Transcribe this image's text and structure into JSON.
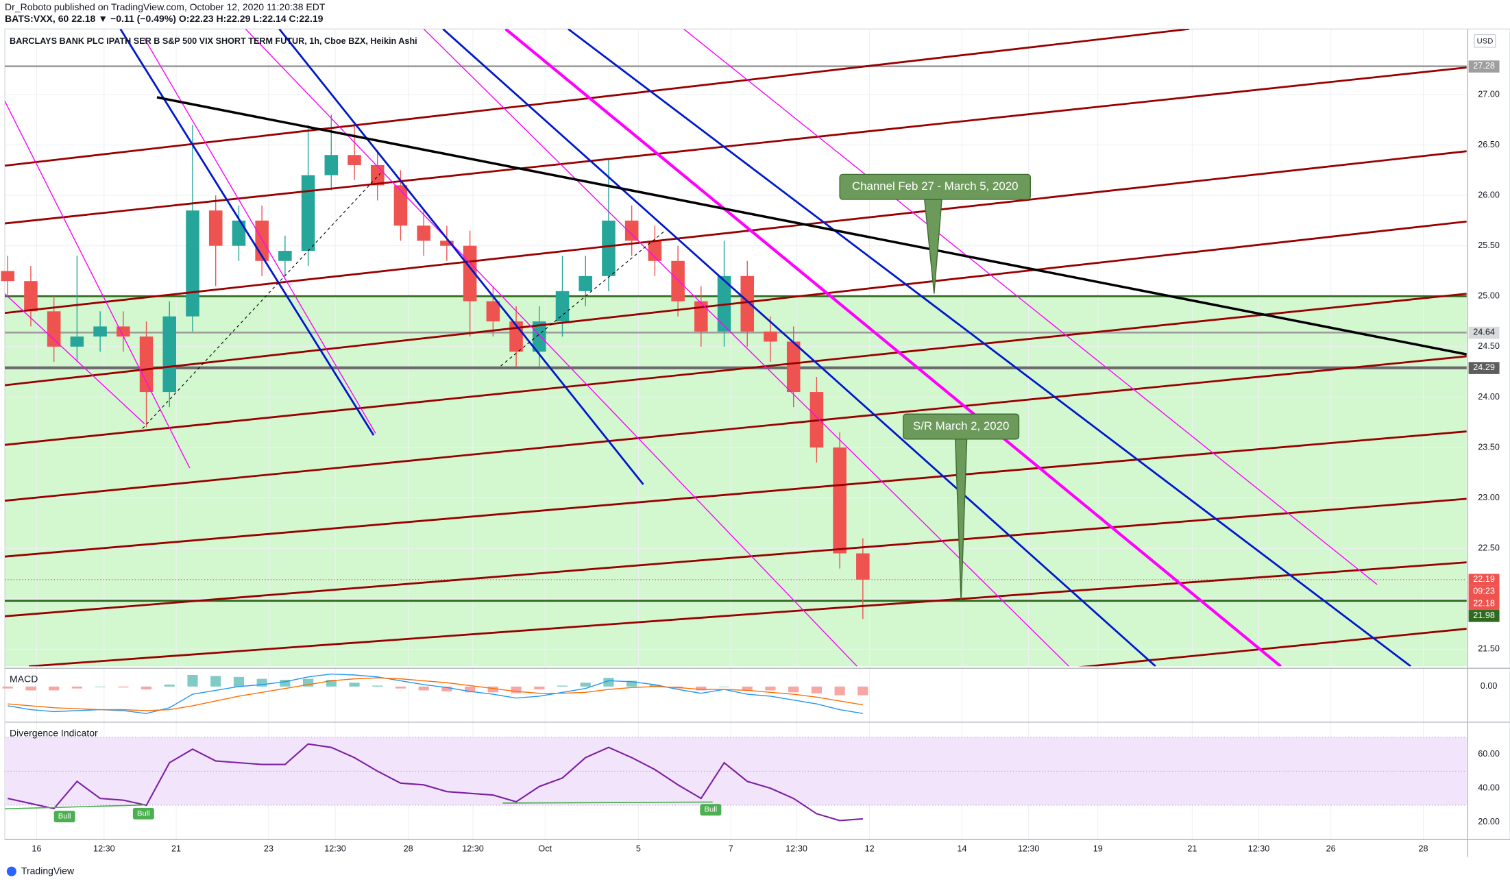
{
  "header": {
    "author_line": "Dr_Roboto published on TradingView.com, October 12, 2020 11:20:38 EDT",
    "symbol_line": "BATS:VXX, 60  22.18 ▼ −0.11 (−0.49%) O:22.23 H:22.29 L:22.14 C:22.19"
  },
  "footer": "TradingView",
  "chart_data": [
    {
      "type": "candlestick",
      "title": "BARCLAYS BANK PLC IPATH SER B S&P 500 VIX SHORT TERM FUTUR, 1h, Cboe BZX, Heikin Ashi",
      "currency": "USD",
      "open": [
        25.25,
        25.15,
        24.85,
        24.5,
        24.6,
        24.7,
        24.6,
        24.05,
        24.8,
        25.85,
        25.5,
        25.75,
        25.35,
        25.45,
        26.2,
        26.4,
        26.3,
        26.1,
        25.7,
        25.55,
        25.5,
        24.95,
        24.75,
        24.45,
        24.75,
        25.05,
        25.2,
        25.75,
        25.55,
        25.35,
        24.95,
        24.65,
        25.2,
        24.65,
        24.55,
        24.05,
        23.5,
        22.45
      ],
      "high": [
        25.4,
        25.3,
        25.0,
        25.4,
        24.85,
        24.85,
        24.75,
        24.95,
        26.7,
        26.0,
        25.9,
        25.9,
        25.6,
        26.7,
        26.8,
        26.7,
        26.45,
        26.25,
        25.85,
        25.7,
        25.65,
        25.1,
        24.9,
        24.9,
        25.4,
        25.4,
        26.35,
        25.9,
        25.7,
        25.5,
        25.1,
        25.55,
        25.35,
        24.8,
        24.7,
        24.2,
        23.65,
        22.6
      ],
      "low": [
        25.0,
        24.7,
        24.35,
        24.35,
        24.45,
        24.45,
        23.7,
        23.9,
        24.65,
        25.1,
        25.35,
        25.2,
        25.2,
        25.3,
        26.05,
        26.15,
        25.95,
        25.55,
        25.4,
        25.35,
        24.6,
        24.6,
        24.3,
        24.3,
        24.6,
        24.9,
        25.05,
        25.4,
        25.2,
        24.8,
        24.5,
        24.5,
        24.5,
        24.35,
        23.9,
        23.35,
        22.3,
        21.8
      ],
      "close": [
        25.15,
        24.85,
        24.5,
        24.6,
        24.7,
        24.6,
        24.05,
        24.8,
        25.85,
        25.5,
        25.75,
        25.35,
        25.45,
        26.2,
        26.4,
        26.3,
        26.1,
        25.7,
        25.55,
        25.5,
        24.95,
        24.75,
        24.45,
        24.75,
        25.05,
        25.2,
        25.75,
        25.55,
        25.35,
        24.95,
        24.65,
        25.2,
        24.65,
        24.55,
        24.05,
        23.5,
        22.45,
        22.19
      ],
      "up_color": "#26a69a",
      "down_color": "#ef5350",
      "ylim": [
        21.33,
        27.65
      ],
      "yticks": [
        {
          "value": 21.5,
          "label": "21.50"
        },
        {
          "value": 22,
          "label": "22.00"
        },
        {
          "value": 22.5,
          "label": "22.50"
        },
        {
          "value": 23,
          "label": "23.00"
        },
        {
          "value": 23.5,
          "label": "23.50"
        },
        {
          "value": 24,
          "label": "24.00"
        },
        {
          "value": 24.5,
          "label": "24.50"
        },
        {
          "value": 25,
          "label": "25.00"
        },
        {
          "value": 25.5,
          "label": "25.50"
        },
        {
          "value": 26,
          "label": "26.00"
        },
        {
          "value": 26.5,
          "label": "26.50"
        },
        {
          "value": 27,
          "label": "27.00"
        }
      ],
      "xlim": [
        -0.125,
        63.125
      ],
      "xticks": [
        {
          "value": 1.25,
          "label": "16"
        },
        {
          "value": 4.17,
          "label": "12:30"
        },
        {
          "value": 7.29,
          "label": "21"
        },
        {
          "value": 11.29,
          "label": "23"
        },
        {
          "value": 14.17,
          "label": "12:30"
        },
        {
          "value": 17.33,
          "label": "28"
        },
        {
          "value": 20.13,
          "label": "12:30"
        },
        {
          "value": 23.25,
          "label": "Oct"
        },
        {
          "value": 27.29,
          "label": "5"
        },
        {
          "value": 31.29,
          "label": "7"
        },
        {
          "value": 34.13,
          "label": "12:30"
        },
        {
          "value": 37.29,
          "label": "12"
        },
        {
          "value": 41.29,
          "label": "14"
        },
        {
          "value": 44.17,
          "label": "12:30"
        },
        {
          "value": 47.17,
          "label": "19"
        },
        {
          "value": 51.25,
          "label": "21"
        },
        {
          "value": 54.13,
          "label": "12:30"
        },
        {
          "value": 57.25,
          "label": "26"
        },
        {
          "value": 61.25,
          "label": "28"
        }
      ],
      "levels": [
        {
          "value": 27.28,
          "color": "#9e9e9e"
        },
        {
          "value": 25,
          "color": "#2e6b1f"
        },
        {
          "value": 24.64,
          "color": "#9e9e9e"
        },
        {
          "value": 24.29,
          "color": "#6b6b6b"
        },
        {
          "value": 21.98,
          "color": "#2e6b1f"
        }
      ],
      "price_labels": [
        {
          "value": 27.28,
          "label": "27.28",
          "color": "#9e9e9e",
          "text_color": "#ffffff"
        },
        {
          "value": 24.64,
          "label": "24.64",
          "color": "#d9dadc",
          "text_color": "#131722"
        },
        {
          "value": 24.29,
          "label": "24.29",
          "color": "#5d5d5d",
          "text_color": "#ffffff"
        },
        {
          "value": 22.19,
          "label": "22.19",
          "color": "#ef5350",
          "text_color": "#ffffff"
        },
        {
          "value": 22.18,
          "label": "22.18",
          "color": "#ef5350",
          "text_color": "#ffffff"
        },
        {
          "value": 21.98,
          "label": "21.98",
          "color": "#2e6b1f",
          "text_color": "#ffffff"
        }
      ],
      "countdown": "09:23",
      "annotations": [
        "Channel Feb 27 - March 5, 2020",
        "S/R March 2, 2020"
      ]
    },
    {
      "type": "macd",
      "title": "MACD",
      "macd": [
        -0.2,
        -0.24,
        -0.26,
        -0.25,
        -0.24,
        -0.25,
        -0.28,
        -0.22,
        -0.08,
        -0.04,
        0.0,
        0.02,
        0.05,
        0.1,
        0.13,
        0.12,
        0.1,
        0.06,
        0.02,
        -0.01,
        -0.05,
        -0.08,
        -0.12,
        -0.1,
        -0.06,
        -0.02,
        0.06,
        0.05,
        0.02,
        -0.03,
        -0.07,
        -0.03,
        -0.08,
        -0.1,
        -0.14,
        -0.18,
        -0.24,
        -0.28
      ],
      "signal": [
        -0.18,
        -0.2,
        -0.22,
        -0.23,
        -0.24,
        -0.24,
        -0.25,
        -0.24,
        -0.2,
        -0.15,
        -0.1,
        -0.06,
        -0.02,
        0.02,
        0.06,
        0.08,
        0.09,
        0.08,
        0.06,
        0.04,
        0.01,
        -0.02,
        -0.05,
        -0.07,
        -0.07,
        -0.06,
        -0.03,
        -0.01,
        0.0,
        -0.01,
        -0.03,
        -0.03,
        -0.04,
        -0.06,
        -0.08,
        -0.11,
        -0.15,
        -0.19
      ],
      "histogram": [
        -0.02,
        -0.04,
        -0.04,
        -0.02,
        0.0,
        -0.01,
        -0.03,
        0.02,
        0.12,
        0.11,
        0.1,
        0.08,
        0.07,
        0.08,
        0.07,
        0.04,
        0.01,
        -0.02,
        -0.04,
        -0.05,
        -0.06,
        -0.06,
        -0.07,
        -0.03,
        0.01,
        0.04,
        0.09,
        0.06,
        0.02,
        -0.02,
        -0.04,
        0.0,
        -0.04,
        -0.04,
        -0.06,
        -0.07,
        -0.09,
        -0.09
      ],
      "macd_color": "#2196f3",
      "signal_color": "#ff6d00",
      "up_color": "#80cbc4",
      "down_color": "#f7a6a4",
      "ylim": [
        -0.32,
        0.13
      ],
      "yticks": [
        {
          "value": 0,
          "label": "0.00"
        }
      ]
    },
    {
      "type": "line",
      "title": "Divergence Indicator",
      "values": [
        34,
        31,
        28,
        44,
        34,
        33,
        30,
        55,
        63,
        56,
        55,
        54,
        54,
        66,
        64,
        58,
        50,
        43,
        42,
        38,
        37,
        36,
        32,
        41,
        46,
        58,
        64,
        58,
        51,
        42,
        34,
        55,
        44,
        40,
        34,
        25,
        21,
        22
      ],
      "color": "#7b1fa2",
      "band": [
        30,
        70
      ],
      "band_lines": [
        30,
        50,
        70
      ],
      "band_color": "#f1e4fb",
      "ylim": [
        10.9,
        77.7
      ],
      "yticks": [
        {
          "value": 20,
          "label": "20.00"
        },
        {
          "value": 40,
          "label": "40.00"
        },
        {
          "value": 60,
          "label": "60.00"
        }
      ],
      "bull_labels": [
        "Bull",
        "Bull",
        "Bull"
      ]
    }
  ]
}
